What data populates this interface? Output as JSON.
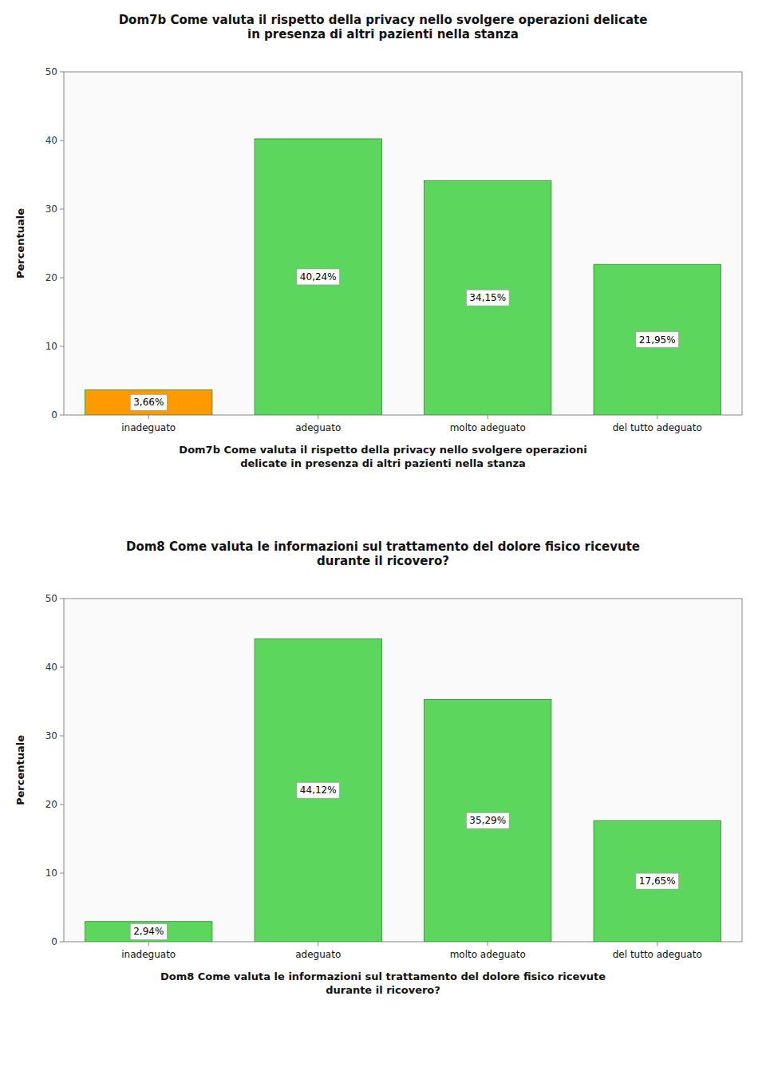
{
  "chart_data": [
    {
      "type": "bar",
      "title": "Dom7b Come valuta il rispetto della privacy nello svolgere operazioni delicate\nin presenza di altri pazienti nella stanza",
      "xlabel": "Dom7b Come valuta il rispetto della privacy nello svolgere operazioni\ndelicate in presenza di altri pazienti nella stanza",
      "ylabel": "Percentuale",
      "categories": [
        "inadeguato",
        "adeguato",
        "molto adeguato",
        "del tutto adeguato"
      ],
      "values": [
        3.66,
        40.24,
        34.15,
        21.95
      ],
      "value_labels": [
        "3,66%",
        "40,24%",
        "34,15%",
        "21,95%"
      ],
      "colors": [
        "#FF9900",
        "#5CD65C",
        "#5CD65C",
        "#5CD65C"
      ],
      "ylim": [
        0,
        50
      ],
      "yticks": [
        0,
        10,
        20,
        30,
        40,
        50
      ],
      "grid": false,
      "data_labels": true
    },
    {
      "type": "bar",
      "title": "Dom8 Come valuta le informazioni sul trattamento del dolore fisico ricevute\ndurante il ricovero?",
      "xlabel": "Dom8 Come valuta le informazioni sul trattamento del dolore fisico ricevute\ndurante il ricovero?",
      "ylabel": "Percentuale",
      "categories": [
        "inadeguato",
        "adeguato",
        "molto adeguato",
        "del tutto adeguato"
      ],
      "values": [
        2.94,
        44.12,
        35.29,
        17.65
      ],
      "value_labels": [
        "2,94%",
        "44,12%",
        "35,29%",
        "17,65%"
      ],
      "colors": [
        "#5CD65C",
        "#5CD65C",
        "#5CD65C",
        "#5CD65C"
      ],
      "ylim": [
        0,
        50
      ],
      "yticks": [
        0,
        10,
        20,
        30,
        40,
        50
      ],
      "grid": false,
      "data_labels": true
    }
  ]
}
